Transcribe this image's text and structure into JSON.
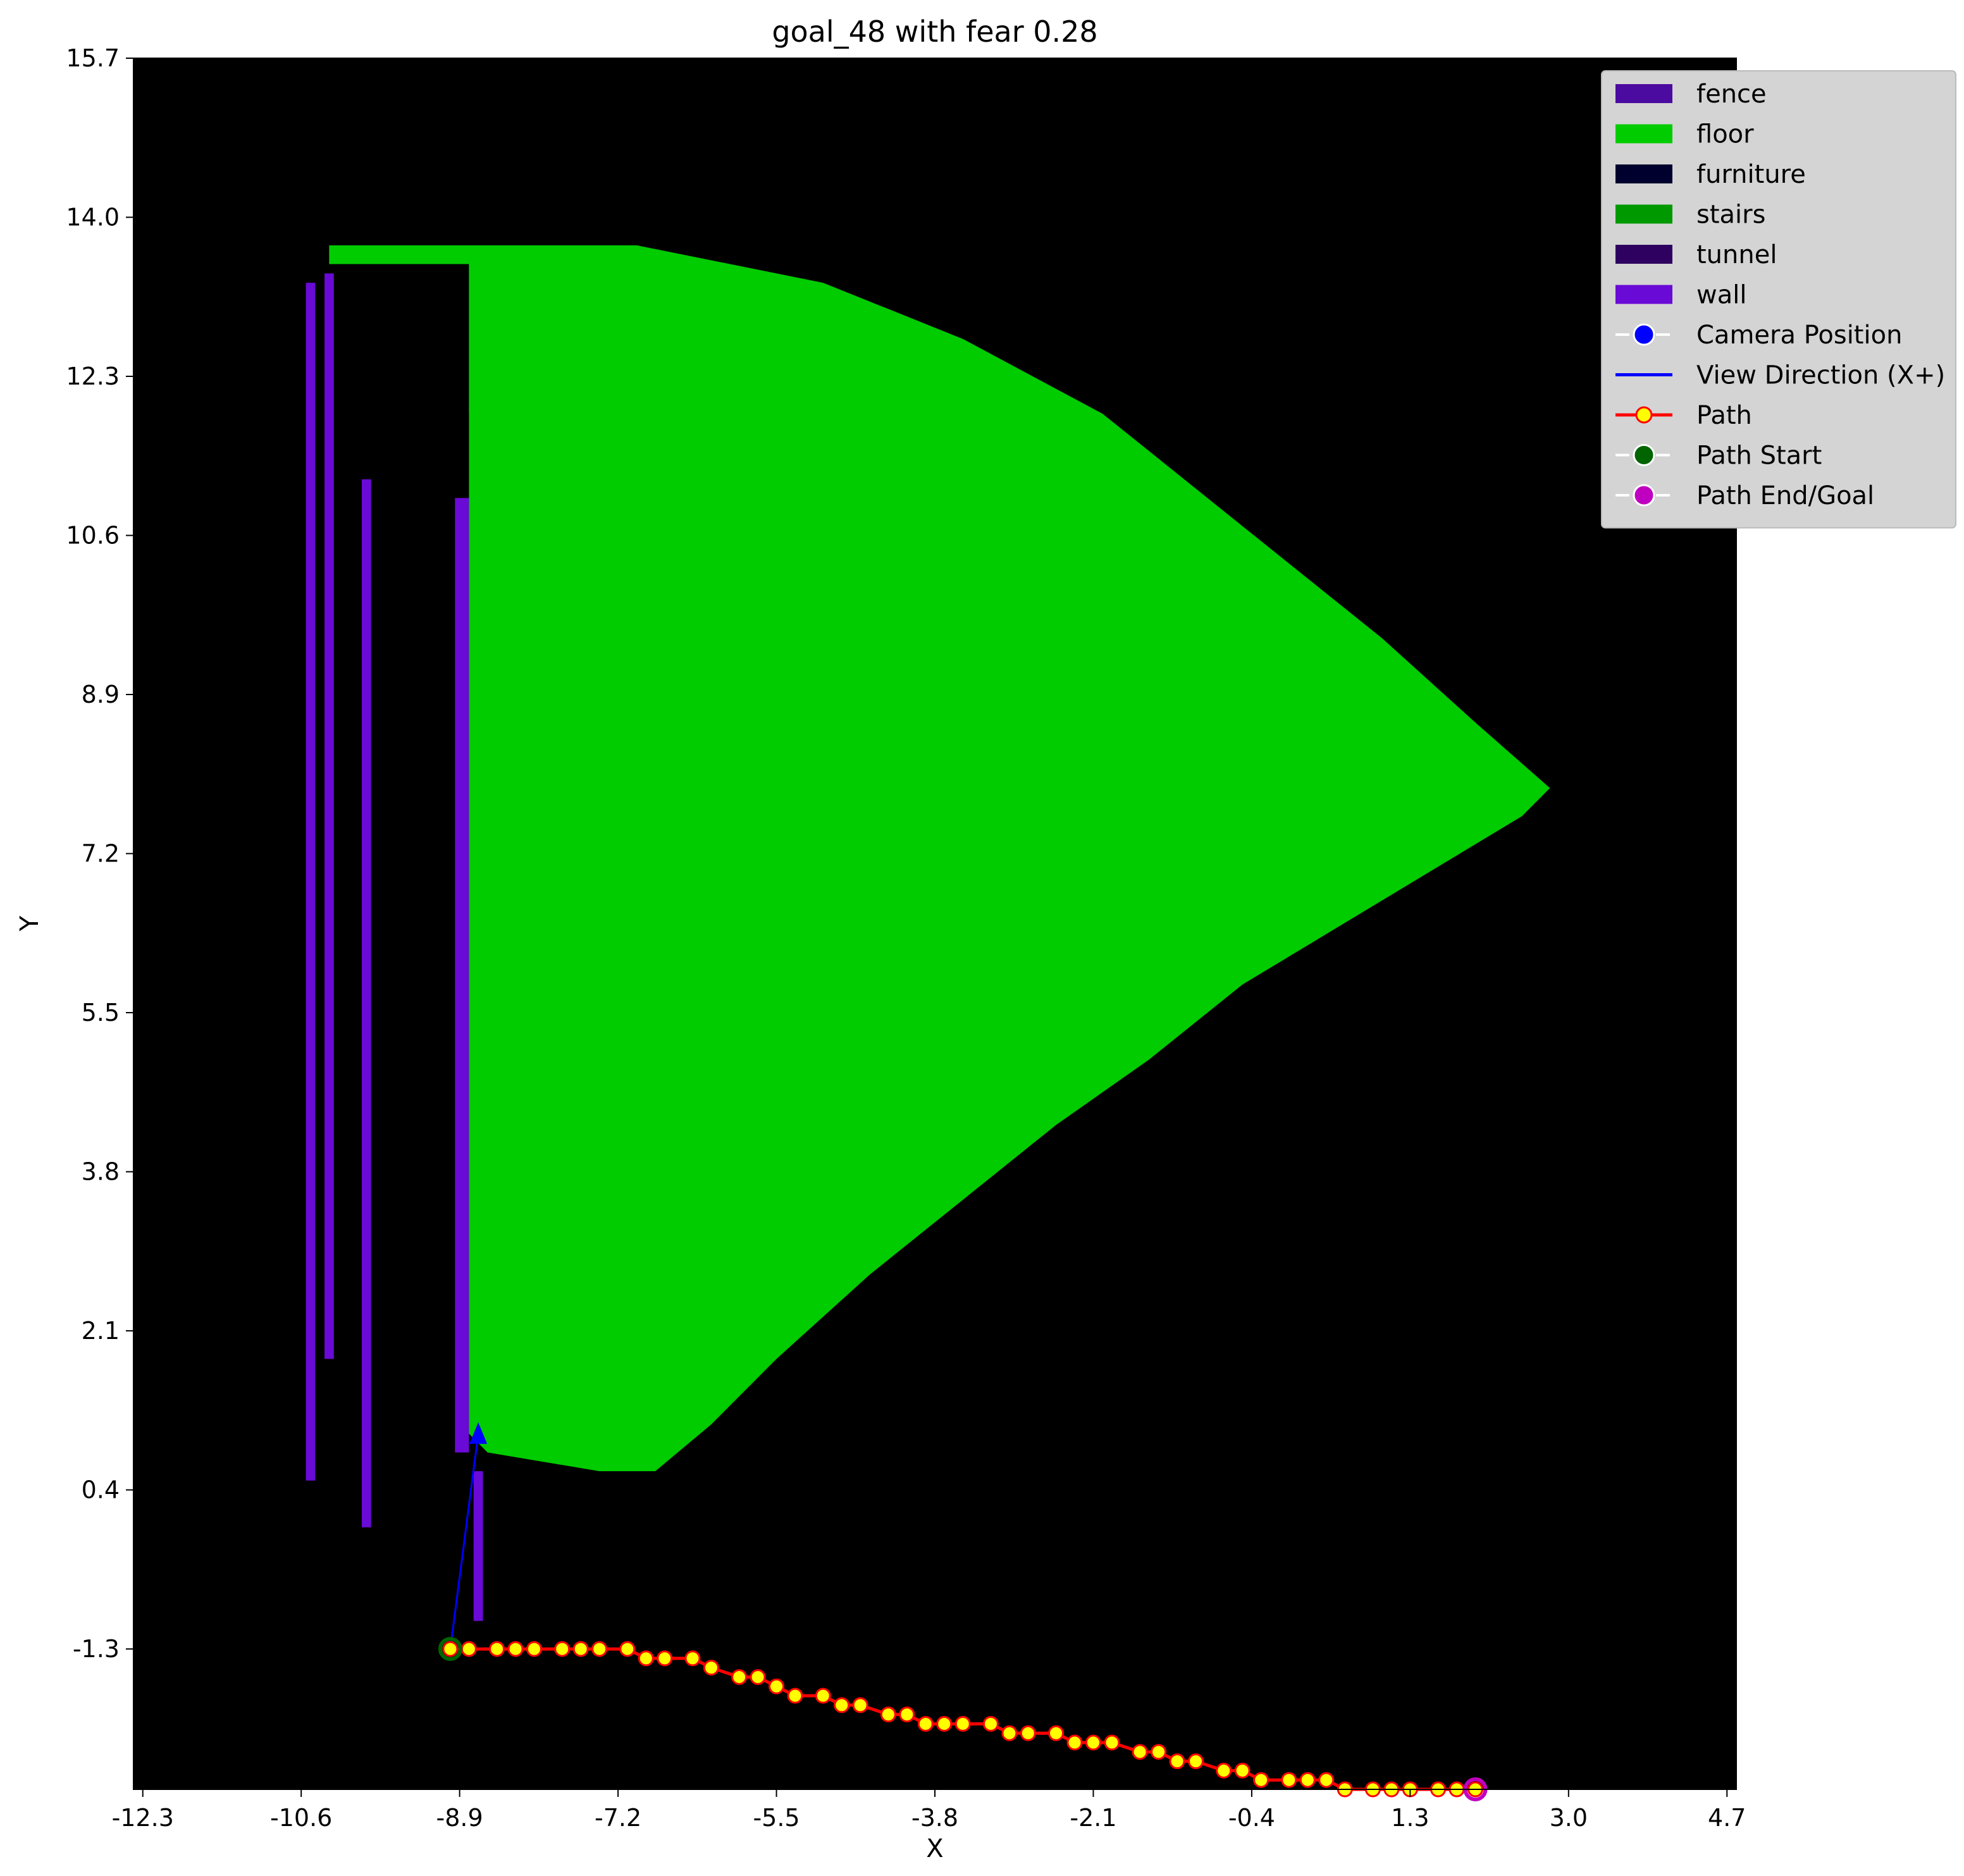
{
  "chart_data": {
    "type": "scatter",
    "title": "goal_48 with fear 0.28",
    "xlabel": "X",
    "ylabel": "Y",
    "xlim": [
      -12.4,
      4.8
    ],
    "ylim": [
      -2.8,
      15.7
    ],
    "x_ticks": [
      "-12.3",
      "-10.6",
      "-8.9",
      "-7.2",
      "-5.5",
      "-3.8",
      "-2.1",
      "-0.4",
      "1.3",
      "3.0",
      "4.7"
    ],
    "y_ticks": [
      "15.7",
      "14.0",
      "12.3",
      "10.6",
      "8.9",
      "7.2",
      "5.5",
      "3.8",
      "2.1",
      "0.4",
      "-1.3"
    ],
    "background_color": "#000000",
    "legend_placement": "top-right",
    "legend": [
      {
        "label": "fence",
        "kind": "patch",
        "color": "#4b0aa0"
      },
      {
        "label": "floor",
        "kind": "patch",
        "color": "#00cc00"
      },
      {
        "label": "furniture",
        "kind": "patch",
        "color": "#00002e"
      },
      {
        "label": "stairs",
        "kind": "patch",
        "color": "#009900"
      },
      {
        "label": "tunnel",
        "kind": "patch",
        "color": "#2e0060"
      },
      {
        "label": "wall",
        "kind": "patch",
        "color": "#6a0ad6"
      },
      {
        "label": "Camera Position",
        "kind": "marker",
        "color": "#0000ff",
        "edge": "#ffffff"
      },
      {
        "label": "View Direction (X+)",
        "kind": "line",
        "color": "#0000ff"
      },
      {
        "label": "Path",
        "kind": "line-marker",
        "color": "#ff0000",
        "marker": "#ffff00"
      },
      {
        "label": "Path Start",
        "kind": "marker",
        "color": "#006400",
        "edge": "#ffffff"
      },
      {
        "label": "Path End/Goal",
        "kind": "marker",
        "color": "#c000c0",
        "edge": "#ffffff"
      }
    ],
    "regions": {
      "floor_polygon": [
        [
          -10.3,
          13.7
        ],
        [
          -7.0,
          13.7
        ],
        [
          -5.0,
          13.3
        ],
        [
          -3.5,
          12.7
        ],
        [
          -2.0,
          11.9
        ],
        [
          -0.5,
          10.7
        ],
        [
          1.0,
          9.5
        ],
        [
          2.0,
          8.6
        ],
        [
          2.8,
          7.9
        ],
        [
          2.5,
          7.6
        ],
        [
          1.5,
          7.0
        ],
        [
          0.5,
          6.4
        ],
        [
          -0.5,
          5.8
        ],
        [
          -1.5,
          5.0
        ],
        [
          -2.5,
          4.3
        ],
        [
          -3.5,
          3.5
        ],
        [
          -4.5,
          2.7
        ],
        [
          -5.5,
          1.8
        ],
        [
          -6.2,
          1.1
        ],
        [
          -6.8,
          0.6
        ],
        [
          -7.4,
          0.6
        ],
        [
          -8.6,
          0.8
        ],
        [
          -8.8,
          1.0
        ],
        [
          -8.8,
          13.5
        ],
        [
          -10.3,
          13.5
        ]
      ],
      "dark_band": [
        [
          -10.0,
          11.9
        ],
        [
          -8.8,
          11.9
        ],
        [
          -8.8,
          0.6
        ],
        [
          -10.0,
          0.6
        ]
      ],
      "wall_strips": [
        {
          "x": -10.55,
          "y0": 0.5,
          "y1": 13.3,
          "w": 0.1
        },
        {
          "x": -10.35,
          "y0": 1.8,
          "y1": 13.4,
          "w": 0.1
        },
        {
          "x": -9.95,
          "y0": 0.0,
          "y1": 11.2,
          "w": 0.1
        },
        {
          "x": -8.95,
          "y0": 0.8,
          "y1": 11.0,
          "w": 0.15
        },
        {
          "x": -8.75,
          "y0": -1.0,
          "y1": 0.6,
          "w": 0.1
        }
      ]
    },
    "camera": {
      "x": -9.0,
      "y": -1.3
    },
    "view_direction": {
      "x0": -9.0,
      "y0": -1.3,
      "x1": -8.7,
      "y1": 1.0
    },
    "path": {
      "x": [
        -9.0,
        -8.8,
        -8.5,
        -8.3,
        -8.1,
        -7.8,
        -7.6,
        -7.4,
        -7.1,
        -6.9,
        -6.7,
        -6.4,
        -6.2,
        -5.9,
        -5.7,
        -5.5,
        -5.3,
        -5.0,
        -4.8,
        -4.6,
        -4.3,
        -4.1,
        -3.9,
        -3.7,
        -3.5,
        -3.2,
        -3.0,
        -2.8,
        -2.5,
        -2.3,
        -2.1,
        -1.9,
        -1.6,
        -1.4,
        -1.2,
        -1.0,
        -0.7,
        -0.5,
        -0.3,
        0.0,
        0.2,
        0.4,
        0.6,
        0.9,
        1.1,
        1.3,
        1.6,
        1.8,
        2.0
      ],
      "y": [
        -1.3,
        -1.3,
        -1.3,
        -1.3,
        -1.3,
        -1.3,
        -1.3,
        -1.3,
        -1.3,
        -1.4,
        -1.4,
        -1.4,
        -1.5,
        -1.6,
        -1.6,
        -1.7,
        -1.8,
        -1.8,
        -1.9,
        -1.9,
        -2.0,
        -2.0,
        -2.1,
        -2.1,
        -2.1,
        -2.1,
        -2.2,
        -2.2,
        -2.2,
        -2.3,
        -2.3,
        -2.3,
        -2.4,
        -2.4,
        -2.5,
        -2.5,
        -2.6,
        -2.6,
        -2.7,
        -2.7,
        -2.7,
        -2.7,
        -2.8,
        -2.8,
        -2.8,
        -2.8,
        -2.8,
        -2.8,
        -2.8
      ]
    },
    "path_end": {
      "x": 2.0,
      "y": -2.8
    }
  }
}
